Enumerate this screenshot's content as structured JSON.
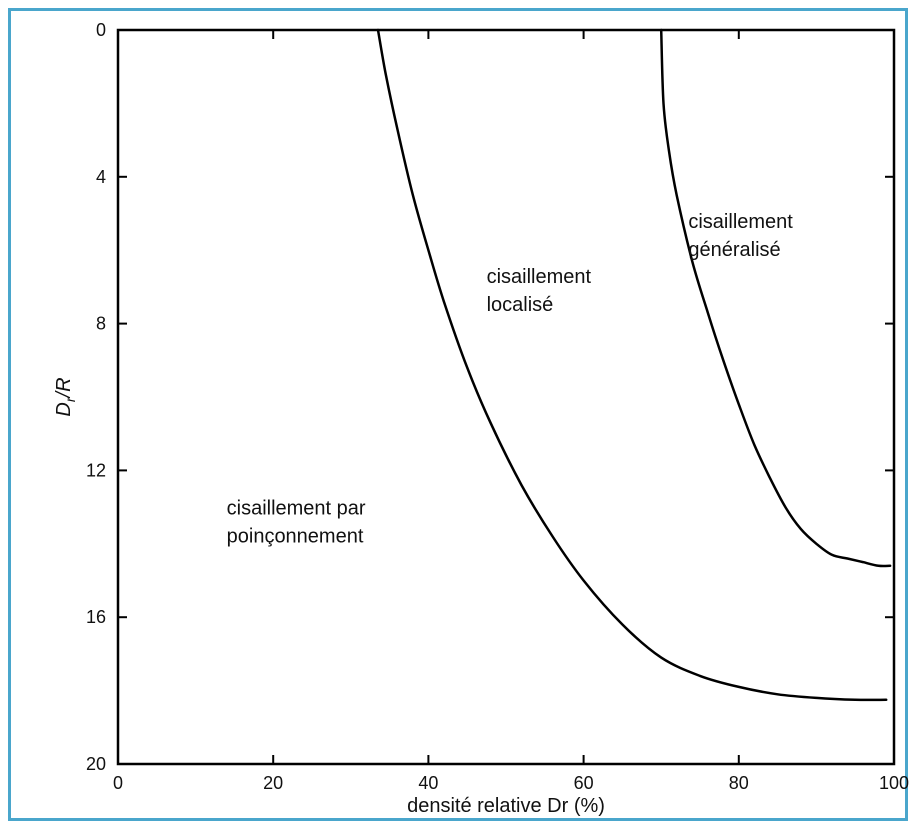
{
  "chart_data": {
    "type": "line",
    "xlabel": "densité relative Dr (%)",
    "ylabel": "D",
    "ylabel_sub": "r",
    "ylabel_suffix": "/R",
    "xlim": [
      0,
      100
    ],
    "ylim": [
      0,
      20
    ],
    "y_inverted": true,
    "xticks": [
      0,
      20,
      40,
      60,
      80,
      100
    ],
    "yticks": [
      0,
      4,
      8,
      12,
      16,
      20
    ],
    "grid": false,
    "series": [
      {
        "x": [
          33.5,
          34.5,
          36,
          38,
          40,
          42,
          45,
          48,
          52,
          56,
          60,
          65,
          70,
          75,
          80,
          85,
          90,
          95,
          99
        ],
        "y": [
          0,
          1.2,
          2.7,
          4.5,
          6.0,
          7.4,
          9.2,
          10.7,
          12.4,
          13.8,
          15.0,
          16.2,
          17.1,
          17.6,
          17.9,
          18.1,
          18.2,
          18.25,
          18.25
        ]
      },
      {
        "x": [
          70,
          70.3,
          71,
          72,
          74,
          76,
          78,
          80,
          82,
          84,
          86,
          88,
          90,
          92,
          94,
          96,
          98,
          99.5
        ],
        "y": [
          0,
          2.0,
          3.3,
          4.5,
          6.3,
          7.7,
          9.0,
          10.2,
          11.3,
          12.2,
          13.0,
          13.6,
          14.0,
          14.3,
          14.4,
          14.5,
          14.6,
          14.6
        ]
      }
    ],
    "annotations": [
      {
        "lines": [
          "cisaillement",
          "localisé"
        ],
        "x": 47.5,
        "y": 6.9
      },
      {
        "lines": [
          "cisaillement",
          "généralisé"
        ],
        "x": 73.5,
        "y": 5.4
      },
      {
        "lines": [
          "cisaillement par",
          "poinçonnement"
        ],
        "x": 14,
        "y": 13.2
      }
    ]
  }
}
